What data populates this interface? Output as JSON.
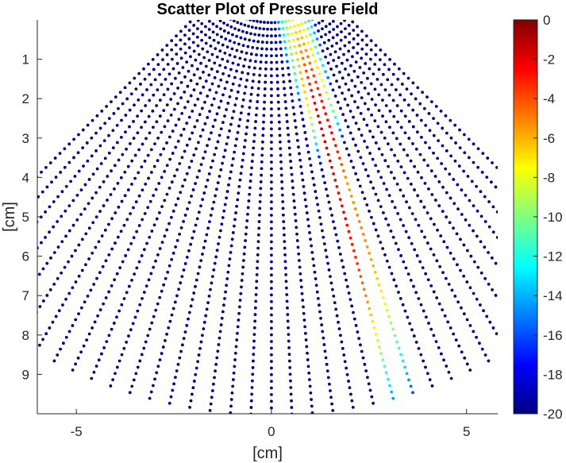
{
  "chart_data": {
    "type": "scatter",
    "title": "Scatter Plot of Pressure Field",
    "xlabel": "[cm]",
    "ylabel": "[cm]",
    "xlim": [
      -6,
      5.8
    ],
    "ylim": [
      10,
      0
    ],
    "y_direction": "reversed (depth increases downward)",
    "xticks": [
      -5,
      0,
      5
    ],
    "xtick_labels": [
      "-5",
      "0",
      "5"
    ],
    "yticks": [
      1,
      2,
      3,
      4,
      5,
      6,
      7,
      8,
      9
    ],
    "ytick_labels": [
      "1",
      "2",
      "3",
      "4",
      "5",
      "6",
      "7",
      "8",
      "9"
    ],
    "grid": false,
    "colormap": "jet",
    "color_range": [
      -20,
      0
    ],
    "colorbar": {
      "position": "right",
      "ticks": [
        0,
        -2,
        -4,
        -6,
        -8,
        -10,
        -12,
        -14,
        -16,
        -18,
        -20
      ],
      "tick_labels": [
        "0",
        "-2",
        "-4",
        "-6",
        "-8",
        "-10",
        "-12",
        "-14",
        "-16",
        "-18",
        "-20"
      ]
    },
    "field": {
      "description": "sector (fan) grid of sample points",
      "apex": [
        0,
        -2.03
      ],
      "radius_range_cm": [
        2.1,
        12.05
      ],
      "angle_range_deg": [
        -45,
        45
      ],
      "radial_lines": 37,
      "samples_per_line": 60,
      "beam_axis_angle_deg": 16,
      "focus_depth_cm": 4.4,
      "peak_value_db": 0,
      "floor_value_db": -20
    }
  }
}
